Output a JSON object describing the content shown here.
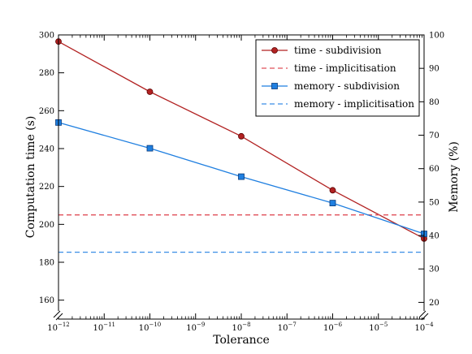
{
  "chart_data": {
    "type": "line",
    "xlabel": "Tolerance",
    "ylabel_left": "Computation time (s)",
    "ylabel_right": "Memory (%)",
    "x_scale": "log",
    "x_ticks": [
      {
        "value": 1e-12,
        "base": "10",
        "exp": "−12"
      },
      {
        "value": 1e-11,
        "base": "10",
        "exp": "−11"
      },
      {
        "value": 1e-10,
        "base": "10",
        "exp": "−10"
      },
      {
        "value": 1e-09,
        "base": "10",
        "exp": "−9"
      },
      {
        "value": 1e-08,
        "base": "10",
        "exp": "−8"
      },
      {
        "value": 1e-07,
        "base": "10",
        "exp": "−7"
      },
      {
        "value": 1e-06,
        "base": "10",
        "exp": "−6"
      },
      {
        "value": 1e-05,
        "base": "10",
        "exp": "−5"
      },
      {
        "value": 0.0001,
        "base": "10",
        "exp": "−4"
      }
    ],
    "xlim": [
      1e-12,
      0.0001
    ],
    "ylim_left": [
      150,
      300
    ],
    "ylim_right": [
      15,
      100
    ],
    "y_ticks_left": [
      "160",
      "180",
      "200",
      "220",
      "240",
      "260",
      "280",
      "300"
    ],
    "y_ticks_right": [
      "20",
      "30",
      "40",
      "50",
      "60",
      "70",
      "80",
      "90",
      "100"
    ],
    "axis_break": true,
    "legend_position": "top-right",
    "series": [
      {
        "name": "time - subdivision",
        "axis": "left",
        "style": "solid",
        "marker": "circle",
        "color": "#b22222",
        "x": [
          1e-12,
          1e-10,
          1e-08,
          1e-06,
          0.0001
        ],
        "y": [
          296.5,
          270,
          246.5,
          218,
          192.5
        ]
      },
      {
        "name": "time - implicitisation",
        "axis": "left",
        "style": "dashed",
        "marker": "none",
        "color": "#e0505a",
        "x": [
          1e-12,
          0.0001
        ],
        "y": [
          205,
          205
        ]
      },
      {
        "name": "memory - subdivision",
        "axis": "right",
        "style": "solid",
        "marker": "square",
        "color": "#1f7fe0",
        "x": [
          1e-12,
          1e-10,
          1e-08,
          1e-06,
          0.0001
        ],
        "y": [
          73.8,
          66.1,
          57.6,
          49.7,
          40.5
        ]
      },
      {
        "name": "memory - implicitisation",
        "axis": "right",
        "style": "dashed",
        "marker": "none",
        "color": "#3a8ee6",
        "x": [
          1e-12,
          0.0001
        ],
        "y": [
          35,
          35
        ]
      }
    ]
  }
}
